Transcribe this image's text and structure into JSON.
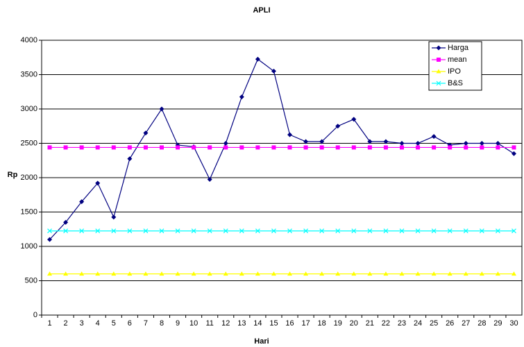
{
  "chart_data": {
    "type": "line",
    "title": "APLI",
    "x_label": "Hari",
    "y_label": "Rp",
    "categories": [
      "1",
      "2",
      "3",
      "4",
      "5",
      "6",
      "7",
      "8",
      "9",
      "10",
      "11",
      "12",
      "13",
      "14",
      "15",
      "16",
      "17",
      "18",
      "19",
      "20",
      "21",
      "22",
      "23",
      "24",
      "25",
      "26",
      "27",
      "28",
      "29",
      "30"
    ],
    "series": [
      {
        "name": "Harga",
        "color": "#000080",
        "marker": "diamond",
        "values": [
          1100,
          1350,
          1650,
          1920,
          1425,
          2275,
          2650,
          3000,
          2475,
          2450,
          1975,
          2500,
          3175,
          3725,
          3550,
          2625,
          2525,
          2525,
          2750,
          2850,
          2525,
          2525,
          2500,
          2500,
          2600,
          2475,
          2500,
          2500,
          2500,
          2350
        ]
      },
      {
        "name": "mean",
        "color": "#ff00ff",
        "marker": "square",
        "values": [
          2440,
          2440,
          2440,
          2440,
          2440,
          2440,
          2440,
          2440,
          2440,
          2440,
          2440,
          2440,
          2440,
          2440,
          2440,
          2440,
          2440,
          2440,
          2440,
          2440,
          2440,
          2440,
          2440,
          2440,
          2440,
          2440,
          2440,
          2440,
          2440,
          2440
        ]
      },
      {
        "name": "IPO",
        "color": "#ffff00",
        "marker": "triangle",
        "values": [
          600,
          600,
          600,
          600,
          600,
          600,
          600,
          600,
          600,
          600,
          600,
          600,
          600,
          600,
          600,
          600,
          600,
          600,
          600,
          600,
          600,
          600,
          600,
          600,
          600,
          600,
          600,
          600,
          600,
          600
        ]
      },
      {
        "name": "B&S",
        "color": "#00ffff",
        "marker": "x",
        "values": [
          1225,
          1225,
          1225,
          1225,
          1225,
          1225,
          1225,
          1225,
          1225,
          1225,
          1225,
          1225,
          1225,
          1225,
          1225,
          1225,
          1225,
          1225,
          1225,
          1225,
          1225,
          1225,
          1225,
          1225,
          1225,
          1225,
          1225,
          1225,
          1225,
          1225
        ]
      }
    ],
    "ylim": [
      0,
      4000
    ],
    "yticks": [
      0,
      500,
      1000,
      1500,
      2000,
      2500,
      3000,
      3500,
      4000
    ],
    "grid": true,
    "legend": "top-right"
  }
}
